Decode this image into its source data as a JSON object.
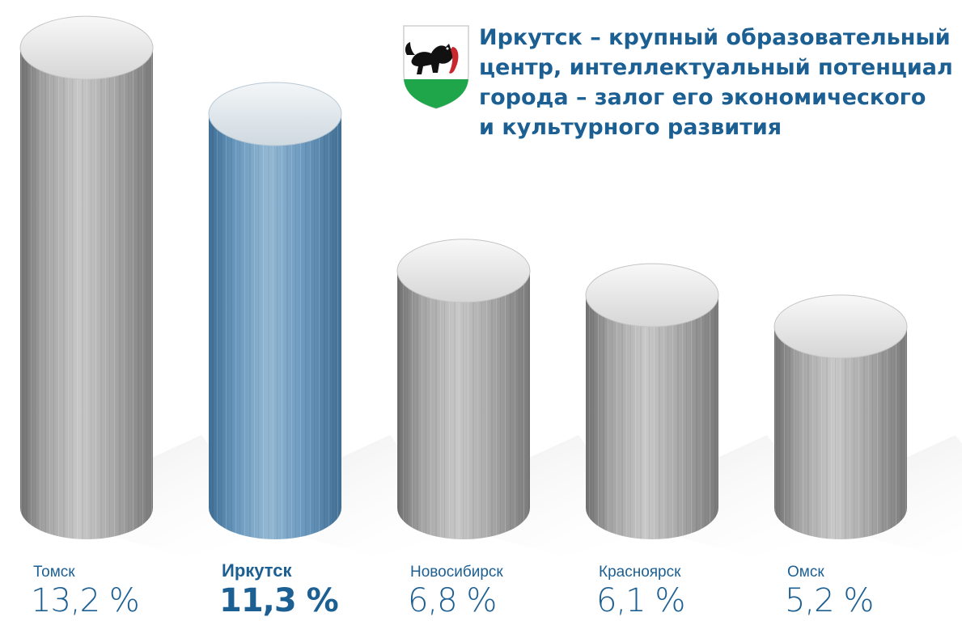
{
  "headline": {
    "lines": [
      "Иркутск – крупный образовательный",
      "центр, интеллектуальный потенциал",
      "города – залог его экономического",
      "и культурного развития"
    ]
  },
  "emblem": {
    "icon": "irkutsk-coat-of-arms-icon",
    "colors": {
      "field": "#ffffff",
      "base": "#1fa64a",
      "animal": "#111111",
      "prey": "#c8282d"
    }
  },
  "chart_data": {
    "type": "bar",
    "categories": [
      "Томск",
      "Иркутск",
      "Новосибирск",
      "Красноярск",
      "Омск"
    ],
    "values": [
      13.2,
      11.3,
      6.8,
      6.1,
      5.2
    ],
    "value_labels": [
      "13,2 %",
      "11,3 %",
      "6,8 %",
      "6,1 %",
      "5,2 %"
    ],
    "highlight_index": 1,
    "colors": {
      "default": "#9a9a9a",
      "highlight": "#5d8fb6",
      "text": "#1c5f92"
    },
    "title": "",
    "xlabel": "",
    "ylabel": "",
    "grid": false,
    "legend": "none"
  }
}
